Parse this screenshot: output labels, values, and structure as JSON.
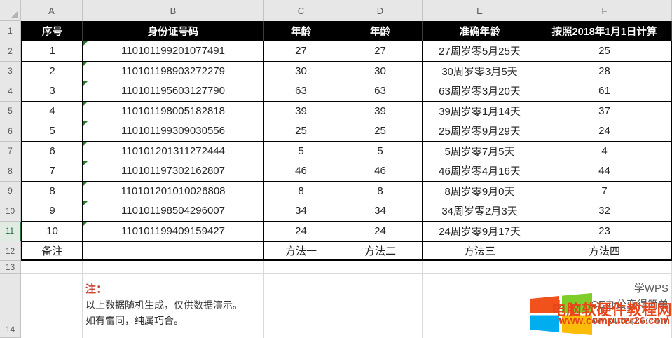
{
  "sheet": {
    "column_letters": [
      "A",
      "B",
      "C",
      "D",
      "E",
      "F"
    ],
    "row_numbers": [
      "1",
      "2",
      "3",
      "4",
      "5",
      "6",
      "7",
      "8",
      "9",
      "10",
      "11",
      "12",
      "13",
      "14"
    ],
    "active_row": "11"
  },
  "table": {
    "headers": [
      "序号",
      "身份证号码",
      "年龄",
      "年龄",
      "准确年龄",
      "按照2018年1月1日计算"
    ],
    "rows": [
      [
        "1",
        "110101199201077491",
        "27",
        "27",
        "27周岁零5月25天",
        "25"
      ],
      [
        "2",
        "110101198903272279",
        "30",
        "30",
        "30周岁零3月5天",
        "28"
      ],
      [
        "3",
        "110101195603127790",
        "63",
        "63",
        "63周岁零3月20天",
        "61"
      ],
      [
        "4",
        "110101198005182818",
        "39",
        "39",
        "39周岁零1月14天",
        "37"
      ],
      [
        "5",
        "110101199309030556",
        "25",
        "25",
        "25周岁零9月29天",
        "24"
      ],
      [
        "6",
        "110101201311272444",
        "5",
        "5",
        "5周岁零7月5天",
        "4"
      ],
      [
        "7",
        "110101197302162807",
        "46",
        "46",
        "46周岁零4月16天",
        "44"
      ],
      [
        "8",
        "110101201010026808",
        "8",
        "8",
        "8周岁零9月0天",
        "7"
      ],
      [
        "9",
        "110101198504296007",
        "34",
        "34",
        "34周岁零2月3天",
        "32"
      ],
      [
        "10",
        "110101199409159427",
        "24",
        "24",
        "24周岁零9月17天",
        "23"
      ]
    ],
    "footer": [
      "备注",
      "",
      "方法一",
      "方法二",
      "方法三",
      "方法四"
    ]
  },
  "note": {
    "label": "注：",
    "lines": [
      "以上数据随机生成，仅供数据演示。",
      "如有雷同，纯属巧合。"
    ]
  },
  "watermark": {
    "brand": "学WPS",
    "slogan": "让OFFICE办公变得简单",
    "url": "http://www.xuewps.com/",
    "overlay_site": "电脑软硬件教程网",
    "overlay_url": "www.computer26.com",
    "logo": "windows-flag-icon"
  },
  "colors": {
    "header_bg": "#000000",
    "header_text": "#ffffff",
    "accent_green": "#217346",
    "indicator_green": "#217a21",
    "note_red": "#cc4437",
    "watermark_red": "#e8451a",
    "flag_orange": "#f1511b",
    "flag_green": "#80cc28",
    "flag_blue": "#00adef",
    "flag_yellow": "#fbbc09"
  }
}
